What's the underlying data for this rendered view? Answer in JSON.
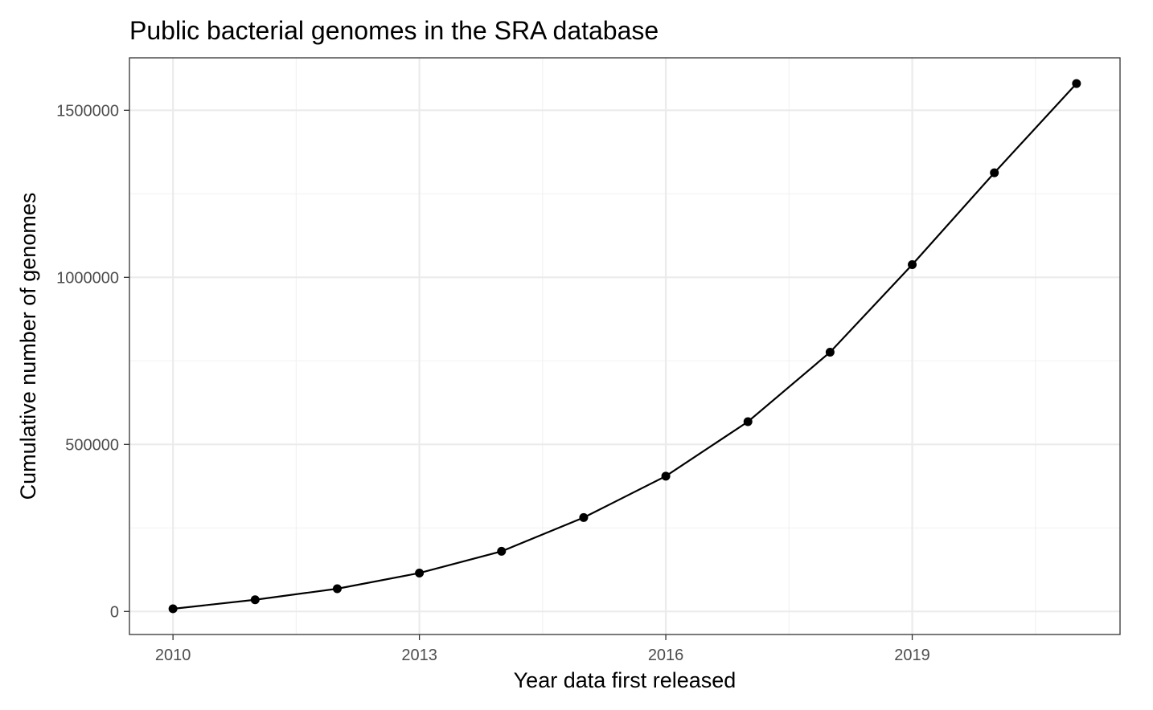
{
  "chart_data": {
    "type": "line",
    "title": "Public bacterial genomes in the SRA database",
    "xlabel": "Year data first released",
    "ylabel": "Cumulative number of genomes",
    "x": [
      2010,
      2011,
      2012,
      2013,
      2014,
      2015,
      2016,
      2017,
      2018,
      2019,
      2020,
      2021
    ],
    "series": [
      {
        "values": [
          8000,
          35000,
          68000,
          115000,
          180000,
          281000,
          405000,
          568000,
          776000,
          1038000,
          1313000,
          1580000
        ],
        "color": "#000000"
      }
    ],
    "xlim": [
      2009.47,
      2021.53
    ],
    "ylim": [
      -69000,
      1657000
    ],
    "xticks": [
      2010,
      2013,
      2016,
      2019
    ],
    "xtick_labels": [
      "2010",
      "2013",
      "2016",
      "2019"
    ],
    "yticks": [
      0,
      500000,
      1000000,
      1500000
    ],
    "ytick_labels": [
      "0",
      "500000",
      "1000000",
      "1500000"
    ],
    "grid": true,
    "legend": "none",
    "theme": "bw"
  }
}
